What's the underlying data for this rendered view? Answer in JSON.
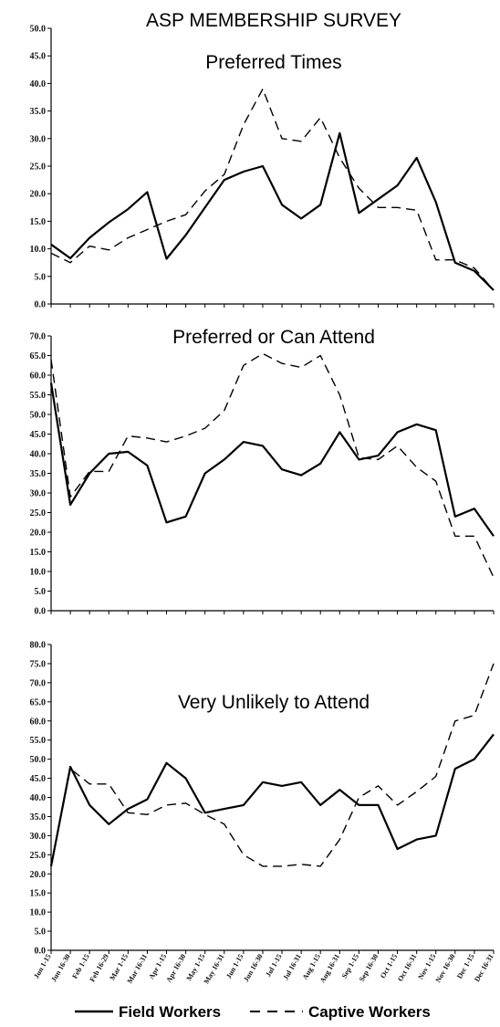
{
  "figure_title": "ASP MEMBERSHIP SURVEY",
  "legend": {
    "solid": "Field Workers",
    "dashed": "Captive Workers"
  },
  "colors": {
    "line": "#000000",
    "axis": "#000000",
    "background": "#ffffff"
  },
  "x_ticks": [
    "Jun 1-15",
    "Jun 16-30",
    "Feb 1-15",
    "Feb 16-29",
    "Mar 1-15",
    "Mar 16-31",
    "Apr 1-15",
    "Apr 16-30",
    "May 1-15",
    "May 16-31",
    "Jun 1-15",
    "Jun 16-30",
    "Jul 1-15",
    "Jul 16-31",
    "Aug 1-15",
    "Aug 16-31",
    "Sep 1-15",
    "Sep 16-30",
    "Oct 1-15",
    "Oct 16-31",
    "Nov 1-15",
    "Nov 16-30",
    "Dec 1-15",
    "Dec 16-31"
  ],
  "chart_data": [
    {
      "type": "line",
      "title": "Preferred Times",
      "ylim": [
        0,
        50
      ],
      "yticks": [
        "0.0",
        "5.0",
        "10.0",
        "15.0",
        "20.0",
        "25.0",
        "30.0",
        "35.0",
        "40.0",
        "45.0",
        "50.0"
      ],
      "x_axis_labels_shown": false,
      "series": [
        {
          "name": "Field Workers",
          "style": "solid",
          "values": [
            10.8,
            8.3,
            12.0,
            14.8,
            17.2,
            20.3,
            8.2,
            12.5,
            17.5,
            22.5,
            24.0,
            25.0,
            18.0,
            15.5,
            18.0,
            31.0,
            16.5,
            19.0,
            21.5,
            26.5,
            18.5,
            7.5,
            6.0,
            2.5
          ]
        },
        {
          "name": "Captive Workers",
          "style": "dashed",
          "values": [
            9.2,
            7.5,
            10.5,
            9.8,
            12.0,
            13.5,
            15.0,
            16.2,
            20.5,
            23.5,
            32.5,
            39.0,
            30.0,
            29.5,
            33.8,
            26.5,
            21.0,
            17.5,
            17.5,
            17.0,
            8.0,
            8.0,
            6.5,
            2.5
          ]
        }
      ]
    },
    {
      "type": "line",
      "title": "Preferred or Can Attend",
      "ylim": [
        0,
        70
      ],
      "yticks": [
        "0.0",
        "5.0",
        "10.0",
        "15.0",
        "20.0",
        "25.0",
        "30.0",
        "35.0",
        "40.0",
        "45.0",
        "50.0",
        "55.0",
        "60.0",
        "65.0",
        "70.0"
      ],
      "x_axis_labels_shown": false,
      "series": [
        {
          "name": "Field Workers",
          "style": "solid",
          "values": [
            58.0,
            27.0,
            35.0,
            40.0,
            40.5,
            37.0,
            22.5,
            24.0,
            35.0,
            38.5,
            43.0,
            42.0,
            36.0,
            34.5,
            37.5,
            45.5,
            38.5,
            39.5,
            45.5,
            47.5,
            46.0,
            24.0,
            26.0,
            19.0
          ]
        },
        {
          "name": "Captive Workers",
          "style": "dashed",
          "values": [
            64.0,
            29.0,
            35.5,
            35.5,
            44.5,
            44.0,
            43.0,
            44.5,
            46.5,
            51.0,
            62.5,
            65.5,
            63.0,
            62.0,
            65.0,
            55.0,
            39.0,
            38.5,
            42.0,
            36.5,
            33.0,
            19.0,
            19.0,
            8.5
          ]
        }
      ]
    },
    {
      "type": "line",
      "title": "Very Unlikely to Attend",
      "ylim": [
        0,
        80
      ],
      "yticks": [
        "0.0",
        "5.0",
        "10.0",
        "15.0",
        "20.0",
        "25.0",
        "30.0",
        "35.0",
        "40.0",
        "45.0",
        "50.0",
        "55.0",
        "60.0",
        "65.0",
        "70.0",
        "75.0",
        "80.0"
      ],
      "x_axis_labels_shown": true,
      "series": [
        {
          "name": "Field Workers",
          "style": "solid",
          "values": [
            22.0,
            48.0,
            38.0,
            33.0,
            37.0,
            39.5,
            49.0,
            45.0,
            36.0,
            37.0,
            38.0,
            44.0,
            43.0,
            44.0,
            38.0,
            42.0,
            38.0,
            38.0,
            26.5,
            29.0,
            30.0,
            47.5,
            50.0,
            56.5
          ]
        },
        {
          "name": "Captive Workers",
          "style": "dashed",
          "values": [
            22.0,
            47.5,
            43.5,
            43.5,
            36.0,
            35.5,
            38.0,
            38.5,
            35.5,
            33.0,
            25.0,
            22.0,
            22.0,
            22.5,
            22.0,
            29.0,
            40.0,
            43.0,
            38.0,
            41.5,
            45.5,
            60.0,
            61.5,
            75.0
          ]
        }
      ]
    }
  ]
}
